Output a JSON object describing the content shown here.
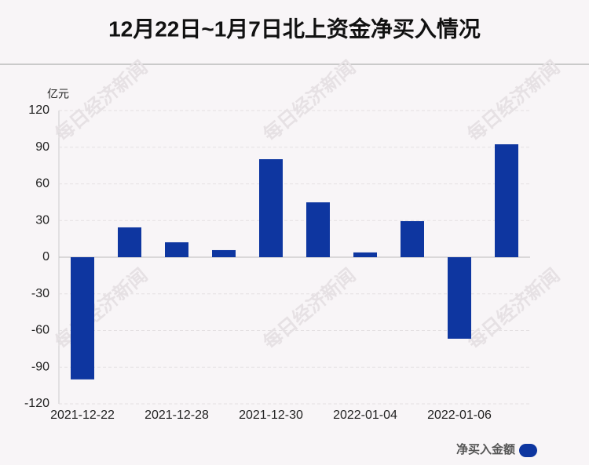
{
  "chart_data": {
    "type": "bar",
    "title": "12月22日~1月7日北上资金净买入情况",
    "y_unit": "亿元",
    "watermark": "每日经济新闻",
    "categories": [
      "2021-12-22",
      null,
      "2021-12-28",
      null,
      "2021-12-30",
      null,
      "2022-01-04",
      null,
      "2022-01-06",
      null
    ],
    "series": [
      {
        "name": "净买入金额",
        "color": "#0e36a0",
        "values": [
          -100,
          24.4,
          12.2,
          5.8,
          80.2,
          44.9,
          3.9,
          29.5,
          -66.7,
          92.4
        ]
      }
    ],
    "ylim": [
      -120,
      120
    ],
    "yticks": [
      -120,
      -90,
      -60,
      -30,
      0,
      30,
      60,
      90,
      120
    ],
    "grid": true
  }
}
